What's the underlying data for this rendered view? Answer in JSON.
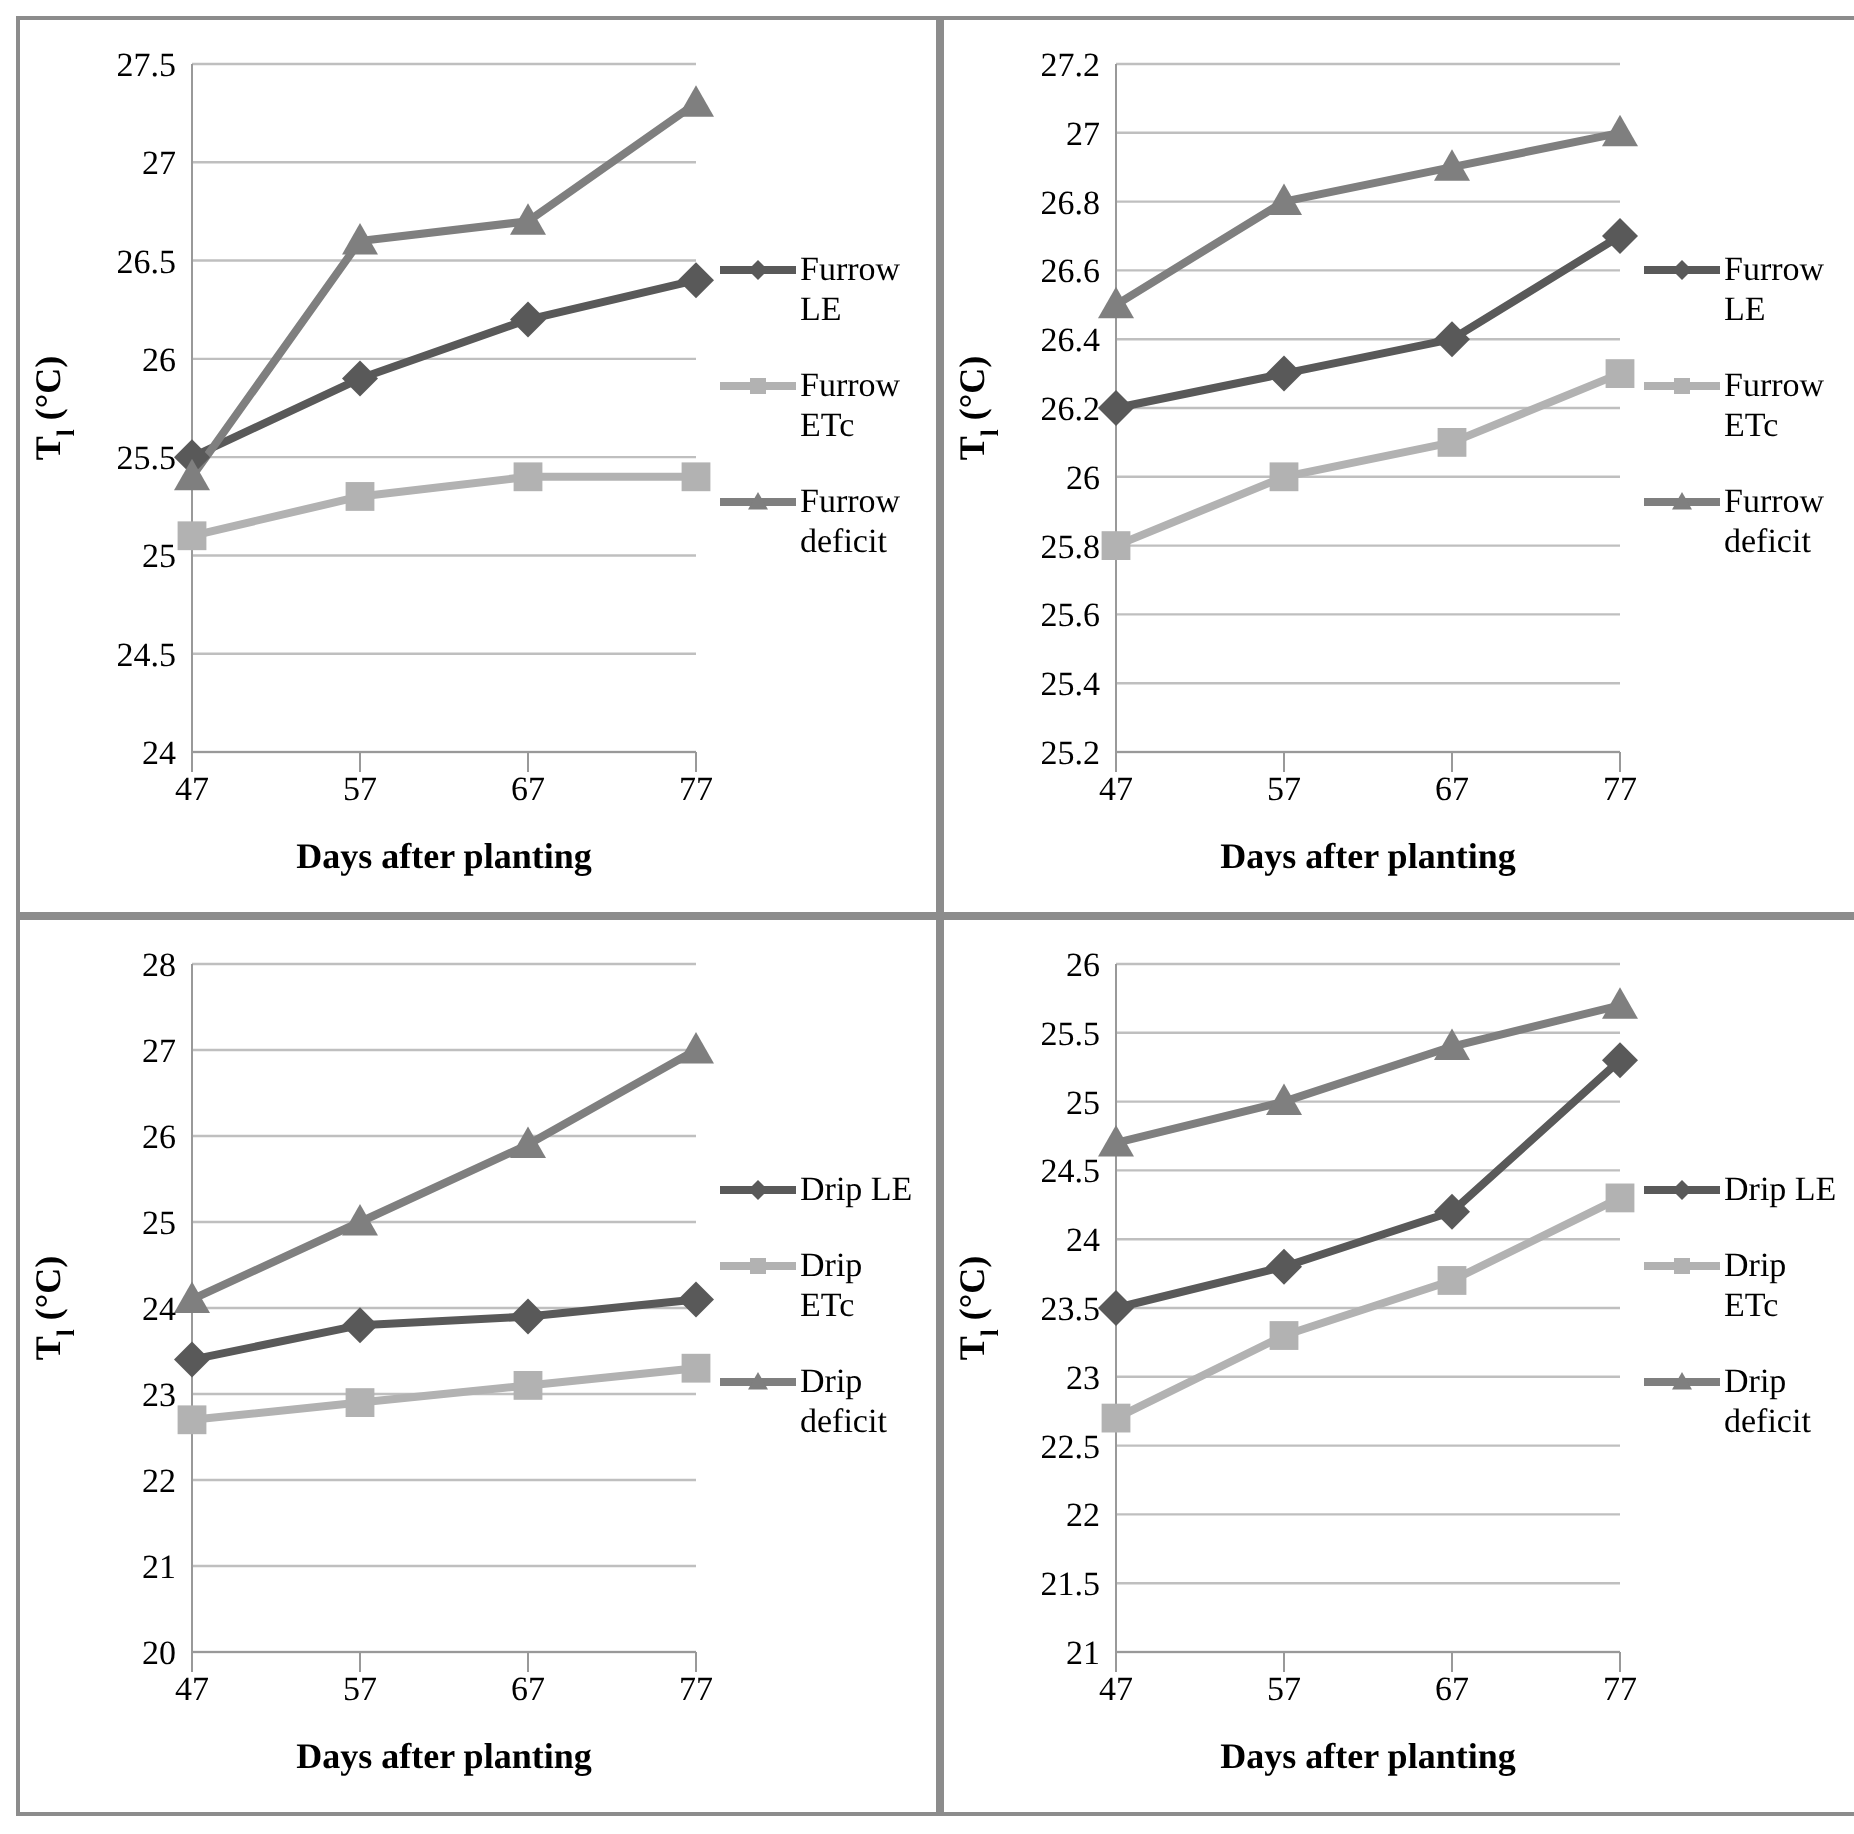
{
  "chart_data": [
    {
      "type": "line",
      "x": [
        47,
        57,
        67,
        77
      ],
      "xlim": [
        47,
        77
      ],
      "xticks": [
        47,
        57,
        67,
        77
      ],
      "ylim": [
        24,
        27.5
      ],
      "yticks": [
        24,
        24.5,
        25,
        25.5,
        26,
        26.5,
        27,
        27.5
      ],
      "xlabel": "Days after planting",
      "ylabel": "T$_{l}$ (°C)",
      "grid": "y",
      "legend": "right",
      "line_style": "solid",
      "series": [
        {
          "name": "Furrow LE",
          "color": "#595959",
          "marker": "diamond",
          "values": [
            25.5,
            25.9,
            26.2,
            26.4
          ]
        },
        {
          "name": "Furrow ETc",
          "color": "#b2b2b2",
          "marker": "square",
          "values": [
            25.1,
            25.3,
            25.4,
            25.4
          ]
        },
        {
          "name": "Furrow deficit",
          "color": "#7f7f7f",
          "marker": "triangle",
          "values": [
            25.4,
            26.6,
            26.7,
            27.3
          ]
        }
      ]
    },
    {
      "type": "line",
      "x": [
        47,
        57,
        67,
        77
      ],
      "xlim": [
        47,
        77
      ],
      "xticks": [
        47,
        57,
        67,
        77
      ],
      "ylim": [
        25.2,
        27.2
      ],
      "yticks": [
        25.2,
        25.4,
        25.6,
        25.8,
        26,
        26.2,
        26.4,
        26.6,
        26.8,
        27,
        27.2
      ],
      "xlabel": "Days after planting",
      "ylabel": "T$_{l}$ (°C)",
      "grid": "y",
      "legend": "right",
      "line_style": "solid",
      "series": [
        {
          "name": "Furrow LE",
          "color": "#595959",
          "marker": "diamond",
          "values": [
            26.2,
            26.3,
            26.4,
            26.7
          ]
        },
        {
          "name": "Furrow ETc",
          "color": "#b2b2b2",
          "marker": "square",
          "values": [
            25.8,
            26.0,
            26.1,
            26.3
          ]
        },
        {
          "name": "Furrow deficit",
          "color": "#7f7f7f",
          "marker": "triangle",
          "values": [
            26.5,
            26.8,
            26.9,
            27.0
          ]
        }
      ]
    },
    {
      "type": "line",
      "x": [
        47,
        57,
        67,
        77
      ],
      "xlim": [
        47,
        77
      ],
      "xticks": [
        47,
        57,
        67,
        77
      ],
      "ylim": [
        20,
        28
      ],
      "yticks": [
        20,
        21,
        22,
        23,
        24,
        25,
        26,
        27,
        28
      ],
      "xlabel": "Days after planting",
      "ylabel": "T$_{l}$ (°C)",
      "grid": "y",
      "legend": "right",
      "line_style": "solid",
      "series": [
        {
          "name": "Drip LE",
          "color": "#595959",
          "marker": "diamond",
          "values": [
            23.4,
            23.8,
            23.9,
            24.1
          ]
        },
        {
          "name": "Drip ETc",
          "color": "#b2b2b2",
          "marker": "square",
          "values": [
            22.7,
            22.9,
            23.1,
            23.3
          ]
        },
        {
          "name": "Drip deficit",
          "color": "#7f7f7f",
          "marker": "triangle",
          "values": [
            24.1,
            25.0,
            25.9,
            27.0
          ]
        }
      ]
    },
    {
      "type": "line",
      "x": [
        47,
        57,
        67,
        77
      ],
      "xlim": [
        47,
        77
      ],
      "xticks": [
        47,
        57,
        67,
        77
      ],
      "ylim": [
        21,
        26
      ],
      "yticks": [
        21,
        21.5,
        22,
        22.5,
        23,
        23.5,
        24,
        24.5,
        25,
        25.5,
        26
      ],
      "xlabel": "Days after planting",
      "ylabel": "T$_{l}$ (°C)",
      "grid": "y",
      "legend": "right",
      "line_style": "solid",
      "series": [
        {
          "name": "Drip LE",
          "color": "#595959",
          "marker": "diamond",
          "values": [
            23.5,
            23.8,
            24.2,
            25.3
          ]
        },
        {
          "name": "Drip ETc",
          "color": "#b2b2b2",
          "marker": "square",
          "values": [
            22.7,
            23.3,
            23.7,
            24.3
          ]
        },
        {
          "name": "Drip deficit",
          "color": "#7f7f7f",
          "marker": "triangle",
          "values": [
            24.7,
            25.0,
            25.4,
            25.7
          ]
        }
      ]
    }
  ]
}
